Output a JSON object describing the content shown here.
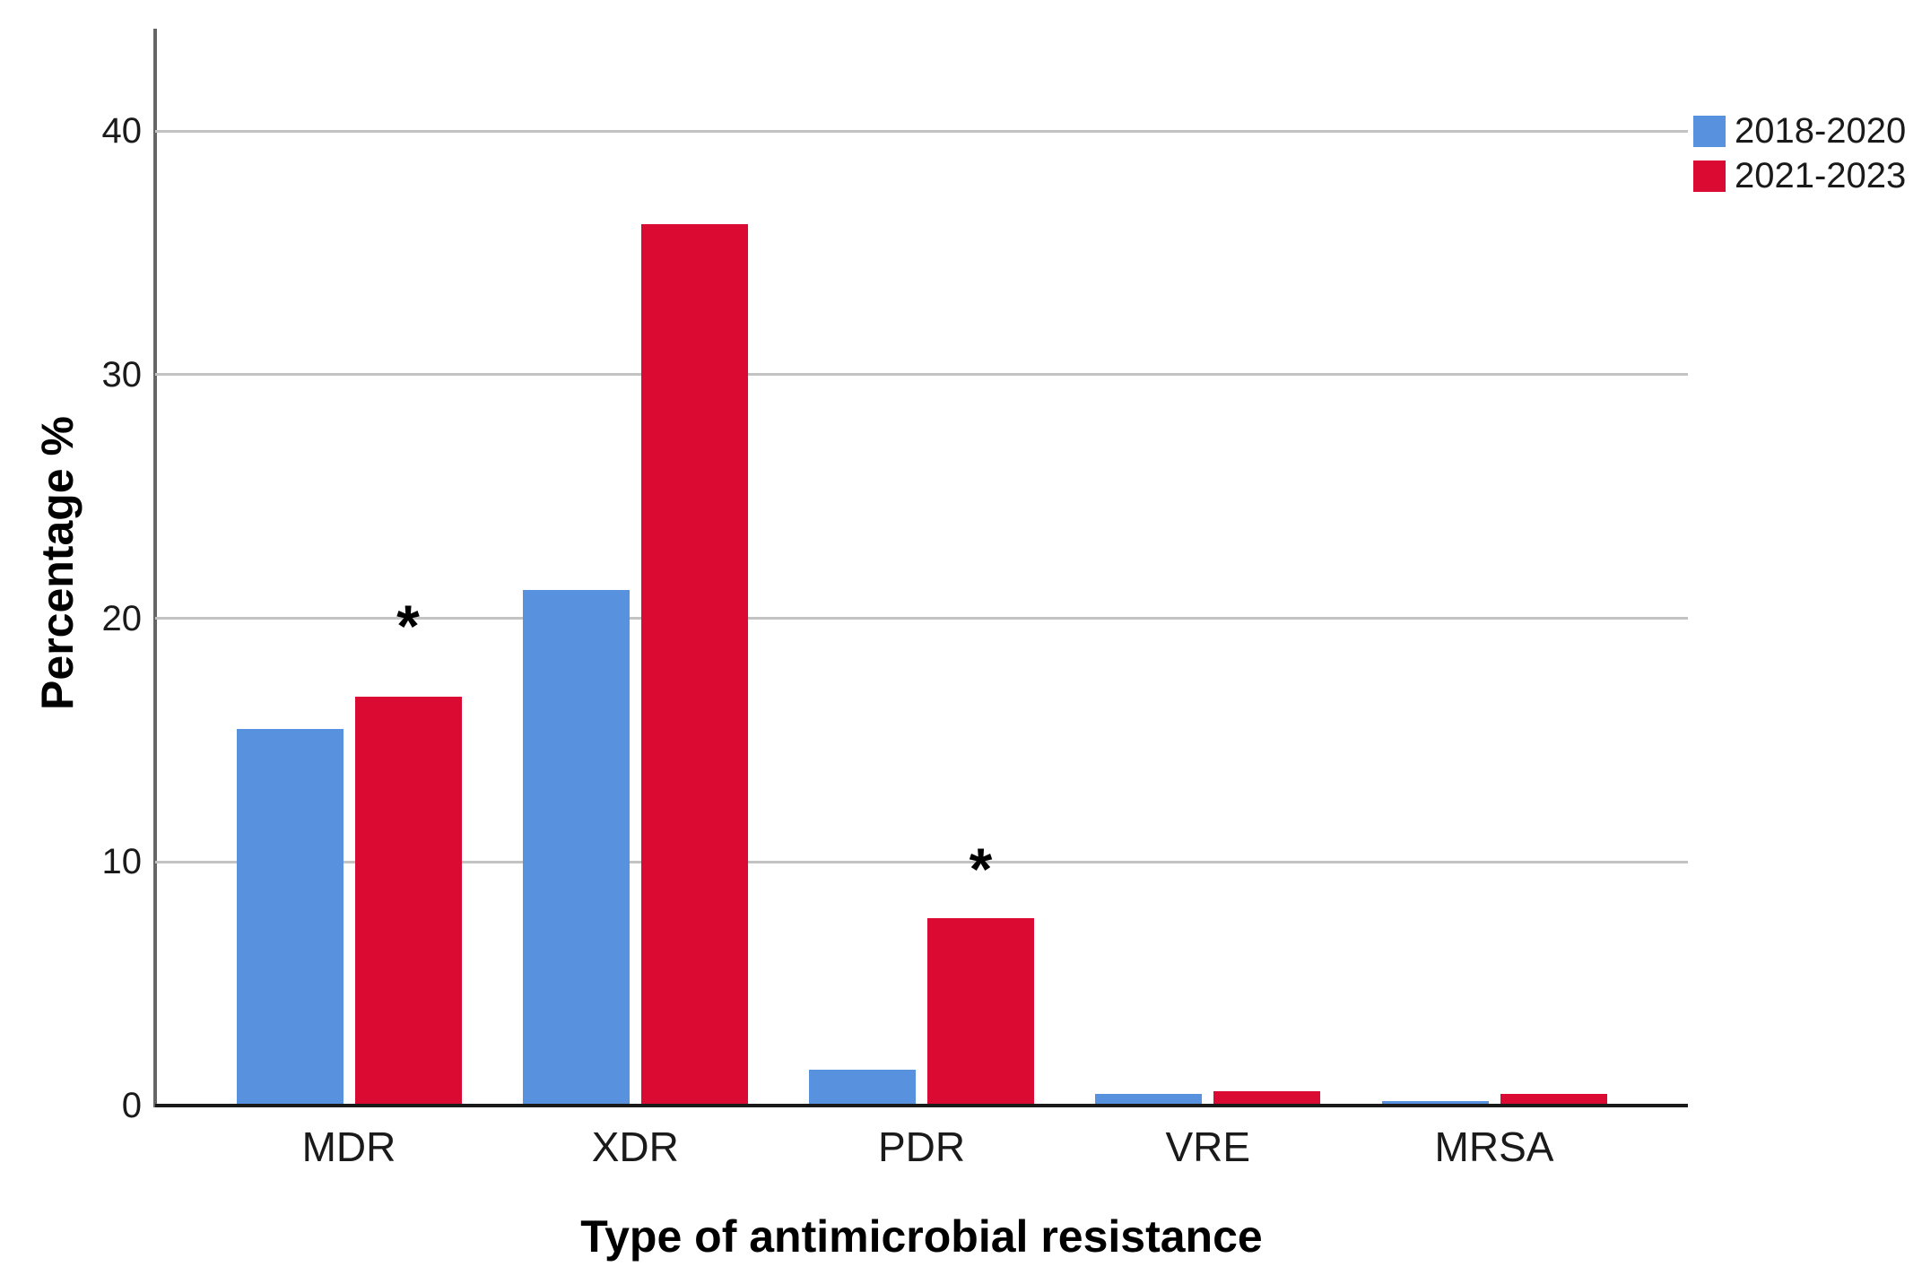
{
  "chart_data": {
    "type": "bar",
    "title": "",
    "xlabel": "Type of antimicrobial resistance",
    "ylabel": "Percentage %",
    "categories": [
      "MDR",
      "XDR",
      "PDR",
      "VRE",
      "MRSA"
    ],
    "series": [
      {
        "name": "2018-2020",
        "color": "#5892DF",
        "values": [
          15.4,
          21.1,
          1.4,
          0.4,
          0.1
        ]
      },
      {
        "name": "2021-2023",
        "color": "#DB0A33",
        "values": [
          16.7,
          36.1,
          7.6,
          0.5,
          0.4
        ]
      }
    ],
    "ylim": [
      0,
      44.2
    ],
    "yticks": [
      0,
      10,
      20,
      30,
      40
    ],
    "grid": "horizontal",
    "legend_position": "top-right",
    "annotations": [
      {
        "text": "*",
        "category": "MDR",
        "series": "2021-2023",
        "y": 20
      },
      {
        "text": "*",
        "category": "PDR",
        "series": "2021-2023",
        "y": 10
      }
    ],
    "colors": {
      "gridline": "#c3c3c3",
      "y_axis_line": "#666666",
      "x_axis_line": "#1a1a1a",
      "text": "#1a1a1a"
    }
  }
}
